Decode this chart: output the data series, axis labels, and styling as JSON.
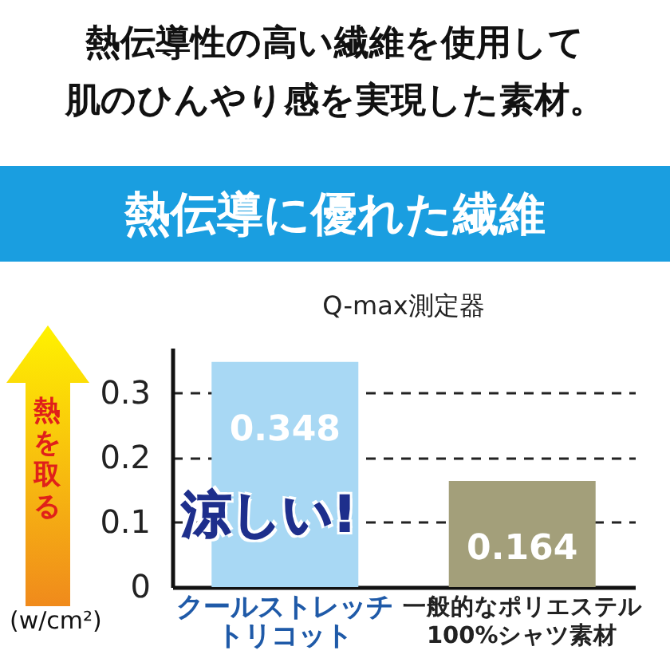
{
  "chart_data": {
    "type": "bar",
    "title": "熱伝導性の高い繊維を使用して肌のひんやり感を実現した素材。",
    "subtitle": "熱伝導に優れた繊維",
    "xlabel": null,
    "ylabel": "熱を取る",
    "annotations": [
      "Q-max測定器",
      "(w/cm²)",
      "涼しい!"
    ],
    "categories": [
      "クールストレッチトリコット",
      "一般的なポリエステル100%シャツ素材"
    ],
    "values": [
      0.348,
      0.164
    ],
    "colors": [
      "#a8d8f4",
      "#a39f7a"
    ],
    "ylim": [
      0,
      0.37
    ],
    "yticks": [
      {
        "value": 0,
        "label": "0"
      },
      0.1,
      0.2,
      0.3
    ],
    "grid": "y",
    "data_labels": true
  }
}
